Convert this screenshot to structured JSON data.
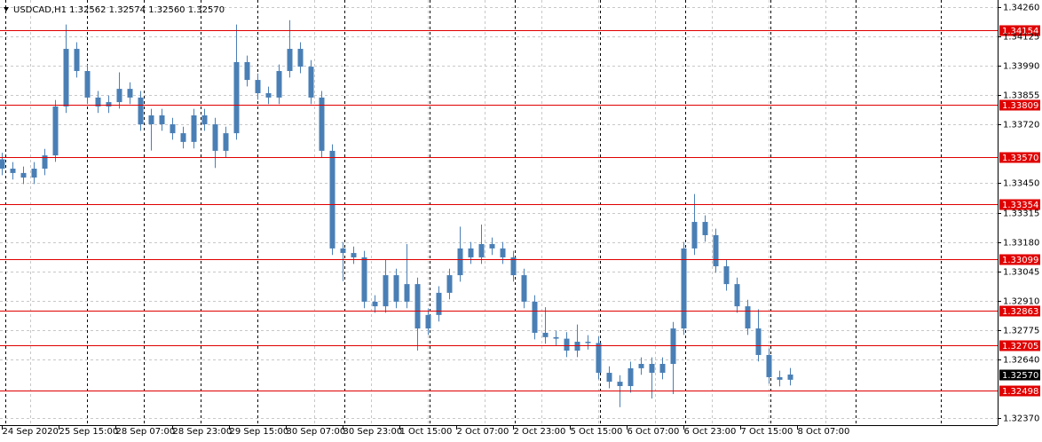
{
  "chart_data": {
    "type": "candlestick",
    "title": "USDCAD,H1  1.32562 1.32574 1.32560 1.32570",
    "color": "#4a7fb5",
    "level_color": "#e00000",
    "ylim": [
      1.3237,
      1.3426
    ],
    "yticks": [
      {
        "value": 1.3426,
        "label": "1.34260"
      },
      {
        "value": 1.34125,
        "label": "1.34125"
      },
      {
        "value": 1.3399,
        "label": "1.33990"
      },
      {
        "value": 1.33855,
        "label": "1.33855"
      },
      {
        "value": 1.3372,
        "label": "1.33720"
      },
      {
        "value": 1.3345,
        "label": "1.33450"
      },
      {
        "value": 1.33315,
        "label": "1.33315"
      },
      {
        "value": 1.3318,
        "label": "1.33180"
      },
      {
        "value": 1.33045,
        "label": "1.33045"
      },
      {
        "value": 1.3291,
        "label": "1.32910"
      },
      {
        "value": 1.32775,
        "label": "1.32775"
      },
      {
        "value": 1.3264,
        "label": "1.32640"
      },
      {
        "value": 1.3237,
        "label": "1.32370"
      }
    ],
    "xlabels": [
      "24 Sep 2020",
      "25 Sep 15:00",
      "28 Sep 07:00",
      "28 Sep 23:00",
      "29 Sep 15:00",
      "30 Sep 07:00",
      "30 Sep 23:00",
      "1 Oct 15:00",
      "2 Oct 07:00",
      "2 Oct 23:00",
      "5 Oct 15:00",
      "6 Oct 07:00",
      "6 Oct 23:00",
      "7 Oct 15:00",
      "8 Oct 07:00"
    ],
    "levels": [
      {
        "value": 1.34154,
        "label": "1.34154"
      },
      {
        "value": 1.33809,
        "label": "1.33809"
      },
      {
        "value": 1.3357,
        "label": "1.33570"
      },
      {
        "value": 1.33354,
        "label": "1.33354"
      },
      {
        "value": 1.33099,
        "label": "1.33099"
      },
      {
        "value": 1.32863,
        "label": "1.32863"
      },
      {
        "value": 1.32705,
        "label": "1.32705"
      },
      {
        "value": 1.32498,
        "label": "1.32498"
      }
    ],
    "current_price": {
      "value": 1.3257,
      "label": "1.32570"
    },
    "open": [
      1.3356,
      1.33517,
      1.33497,
      1.33476,
      1.33517,
      1.33578,
      1.33803,
      1.34068,
      1.33966,
      1.33844,
      1.33803,
      1.33823,
      1.33884,
      1.33844,
      1.33721,
      1.33762,
      1.33721,
      1.3368,
      1.3364,
      1.33762,
      1.33721,
      1.33599,
      1.3368,
      1.34007,
      1.33925,
      1.33864,
      1.33844,
      1.33966,
      1.34068,
      1.33986,
      1.33844,
      1.33599,
      1.3315,
      1.33129,
      1.33109,
      1.32905,
      1.32884,
      1.33027,
      1.32905,
      1.32986,
      1.32782,
      1.32844,
      1.32946,
      1.33027,
      1.3315,
      1.33109,
      1.3317,
      1.3315,
      1.33109,
      1.33027,
      1.32905,
      1.32762,
      1.32742,
      1.32735,
      1.3268,
      1.32721,
      1.32715,
      1.32578,
      1.32537,
      1.32517,
      1.32599,
      1.32619,
      1.32578,
      1.32619,
      1.32782,
      1.3315,
      1.33272,
      1.33211,
      1.33068,
      1.32986,
      1.32884,
      1.32782,
      1.3266,
      1.32558,
      1.32546
    ],
    "high": [
      1.3359,
      1.33547,
      1.33527,
      1.33547,
      1.33608,
      1.33833,
      1.3418,
      1.34098,
      1.33996,
      1.33874,
      1.33853,
      1.3396,
      1.33914,
      1.33874,
      1.33792,
      1.33792,
      1.33751,
      1.3371,
      1.33792,
      1.33792,
      1.33751,
      1.3371,
      1.3418,
      1.34037,
      1.33955,
      1.33894,
      1.33996,
      1.342,
      1.34098,
      1.34016,
      1.33874,
      1.33629,
      1.3318,
      1.33159,
      1.33139,
      1.32935,
      1.331,
      1.33057,
      1.3317,
      1.33016,
      1.32874,
      1.32976,
      1.33057,
      1.3325,
      1.3318,
      1.3326,
      1.332,
      1.3318,
      1.33139,
      1.33057,
      1.32935,
      1.3288,
      1.32772,
      1.32765,
      1.328,
      1.32751,
      1.32745,
      1.32608,
      1.32567,
      1.32629,
      1.32649,
      1.32649,
      1.32649,
      1.32812,
      1.3318,
      1.334,
      1.33302,
      1.33241,
      1.33098,
      1.33016,
      1.32914,
      1.3287,
      1.3269,
      1.32588,
      1.326
    ],
    "low": [
      1.33487,
      1.33467,
      1.33446,
      1.33446,
      1.33487,
      1.33548,
      1.33773,
      1.33936,
      1.33814,
      1.33773,
      1.33773,
      1.33793,
      1.33814,
      1.33691,
      1.336,
      1.33691,
      1.3365,
      1.3361,
      1.3361,
      1.33691,
      1.3352,
      1.33569,
      1.3365,
      1.33895,
      1.33834,
      1.33814,
      1.33814,
      1.33936,
      1.33956,
      1.33814,
      1.33569,
      1.3312,
      1.33,
      1.33079,
      1.32875,
      1.32854,
      1.32854,
      1.32875,
      1.32875,
      1.3268,
      1.32752,
      1.32814,
      1.32916,
      1.32997,
      1.33079,
      1.33079,
      1.3312,
      1.33079,
      1.32997,
      1.32875,
      1.32732,
      1.32712,
      1.32705,
      1.3265,
      1.3265,
      1.32685,
      1.32548,
      1.32507,
      1.3242,
      1.32487,
      1.32569,
      1.3246,
      1.32548,
      1.3248,
      1.32752,
      1.3312,
      1.33181,
      1.33038,
      1.32956,
      1.32854,
      1.32752,
      1.3263,
      1.32528,
      1.32516,
      1.3252
    ],
    "close": [
      1.33517,
      1.33497,
      1.33476,
      1.33517,
      1.33578,
      1.33803,
      1.34068,
      1.33966,
      1.33844,
      1.33803,
      1.33823,
      1.33884,
      1.33844,
      1.33721,
      1.33762,
      1.33721,
      1.3368,
      1.3364,
      1.33762,
      1.33721,
      1.33599,
      1.3368,
      1.34007,
      1.33925,
      1.33864,
      1.33844,
      1.33966,
      1.34068,
      1.33986,
      1.33844,
      1.33599,
      1.3315,
      1.33129,
      1.33109,
      1.32905,
      1.32884,
      1.33027,
      1.32905,
      1.32986,
      1.32782,
      1.32844,
      1.32946,
      1.33027,
      1.3315,
      1.33109,
      1.3317,
      1.3315,
      1.33109,
      1.33027,
      1.32905,
      1.32762,
      1.32742,
      1.32735,
      1.3268,
      1.32721,
      1.32715,
      1.32578,
      1.32537,
      1.32517,
      1.32599,
      1.32619,
      1.32578,
      1.32619,
      1.32782,
      1.3315,
      1.33272,
      1.33211,
      1.33068,
      1.32986,
      1.32884,
      1.32782,
      1.3266,
      1.32558,
      1.32546,
      1.3257
    ]
  }
}
